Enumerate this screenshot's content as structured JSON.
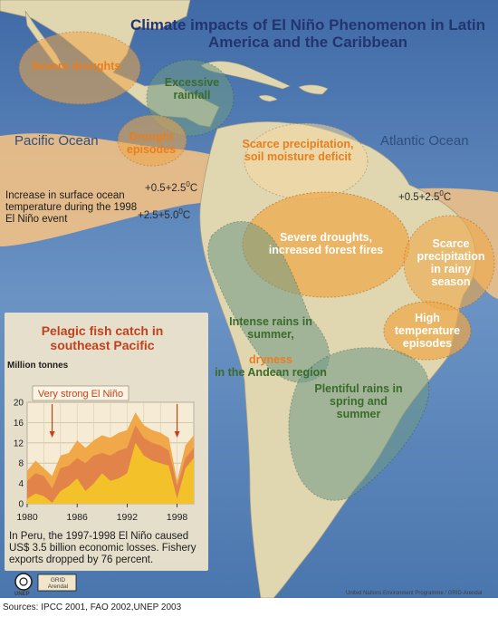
{
  "map": {
    "title": "Climate impacts of El Niño Phenomenon in Latin America and the Caribbean",
    "oceans": {
      "pacific": "Pacific Ocean",
      "atlantic": "Atlantic Ocean"
    },
    "impact_zones": {
      "severe_droughts_mexico": "Severe droughts",
      "excessive_rainfall": "Excessive rainfall",
      "drought_episodes": "Drought episodes",
      "scarce_precipitation": "Scarce precipitation, soil moisture deficit",
      "severe_droughts_fires": "Severe droughts, increased forest fires",
      "scarce_precipitation_rainy": "Scarce precipitation in rainy season",
      "intense_rains": "Intense rains in summer,",
      "dryness_word": "dryness",
      "andean_region": "in the Andean region",
      "high_temperature": "High temperature episodes",
      "plentiful_rains": "Plentiful rains in spring and summer"
    },
    "temperature_labels": {
      "pacific_upper": "+0.5+2.5",
      "pacific_lower": "+2.5+5.0",
      "atlantic": "+0.5+2.5",
      "unit_superscript": "0",
      "unit_letter": "C"
    },
    "sst_note": "Increase in surface ocean temperature during the 1998 El Niño event",
    "loss_note": "In Peru, the 1997-1998 El Niño caused US$ 3.5 billion economic losses. Fishery exports dropped by 76 percent.",
    "unep_label": "UNEP",
    "grid_logo": "GRID Arendal",
    "credit": "United Nations Environment Programme / GRID-Arendal",
    "sources": "Sources: IPCC 2001, FAO 2002,UNEP 2003",
    "colors": {
      "ocean": "#5b84ba",
      "land": "#e0d6b0",
      "warm_water": "#f6c384",
      "orange_zone": "#f0a848",
      "green_zone": "#6e9a86",
      "title": "#23346f",
      "orange_text": "#e97e1f",
      "green_text": "#3b6b2a"
    }
  },
  "chart_data": {
    "type": "area",
    "title": "Pelagic fish catch in southeast Pacific",
    "ylabel": "Million tonnes",
    "x": [
      1980,
      1981,
      1982,
      1983,
      1984,
      1985,
      1986,
      1987,
      1988,
      1989,
      1990,
      1991,
      1992,
      1993,
      1994,
      1995,
      1996,
      1997,
      1998,
      1999,
      2000
    ],
    "xticks": [
      1980,
      1986,
      1992,
      1998
    ],
    "yticks": [
      0,
      4,
      8,
      12,
      16,
      20
    ],
    "xlim": [
      1980,
      2000
    ],
    "ylim": [
      0,
      20
    ],
    "series": [
      {
        "values": [
          6.5,
          8.5,
          7.0,
          5.5,
          9.5,
          10.0,
          12.5,
          11.0,
          12.5,
          13.5,
          13.0,
          14.0,
          14.5,
          18.0,
          15.5,
          14.5,
          14.0,
          13.0,
          4.5,
          11.5,
          13.5
        ],
        "color": "#f0a848"
      },
      {
        "values": [
          4.5,
          6.0,
          5.5,
          3.0,
          7.0,
          7.5,
          9.0,
          8.0,
          9.5,
          10.0,
          9.5,
          10.5,
          11.0,
          15.5,
          13.0,
          12.0,
          11.5,
          10.5,
          3.5,
          9.0,
          11.0
        ],
        "color": "#e2844a"
      },
      {
        "values": [
          1.0,
          2.0,
          1.5,
          0.2,
          2.5,
          3.5,
          5.0,
          2.5,
          4.0,
          6.0,
          4.5,
          5.0,
          6.0,
          12.0,
          9.5,
          8.5,
          8.0,
          7.5,
          1.0,
          7.0,
          9.0
        ],
        "color": "#f3c12a"
      }
    ],
    "annotation": "Very strong El Niño",
    "annotated_years": [
      1983,
      1998
    ],
    "grid": true
  }
}
